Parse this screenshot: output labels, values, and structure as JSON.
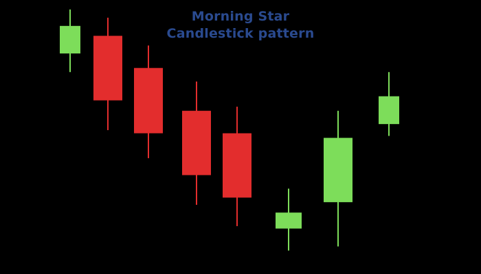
{
  "title": "Morning Star",
  "subtitle": "Candlestick pattern",
  "colors": {
    "background": "#000000",
    "title": "#2a4a8f",
    "bullish": "#7ddd5a",
    "bearish": "#e32d2d"
  },
  "chart_data": {
    "type": "candlestick",
    "title": "Morning Star",
    "subtitle": "Candlestick pattern",
    "xlabel": "",
    "ylabel": "",
    "ylim": [
      0,
      100
    ],
    "grid": false,
    "legend": "none",
    "candles": [
      {
        "open": 86.1,
        "close": 97.5,
        "high": 104.3,
        "low": 78.4,
        "direction": "bullish"
      },
      {
        "open": 93.4,
        "close": 66.7,
        "high": 100.9,
        "low": 54.4,
        "direction": "bearish"
      },
      {
        "open": 80.1,
        "close": 53.1,
        "high": 89.4,
        "low": 42.8,
        "direction": "bearish"
      },
      {
        "open": 62.4,
        "close": 35.8,
        "high": 74.5,
        "low": 23.5,
        "direction": "bearish"
      },
      {
        "open": 53.1,
        "close": 26.5,
        "high": 64.1,
        "low": 14.7,
        "direction": "bearish"
      },
      {
        "open": 13.7,
        "close": 20.3,
        "high": 30.2,
        "low": 4.6,
        "direction": "bullish"
      },
      {
        "open": 24.6,
        "close": 51.2,
        "high": 62.4,
        "low": 6.3,
        "direction": "bullish"
      },
      {
        "open": 56.9,
        "close": 68.4,
        "high": 78.4,
        "low": 52.0,
        "direction": "bullish"
      }
    ]
  }
}
